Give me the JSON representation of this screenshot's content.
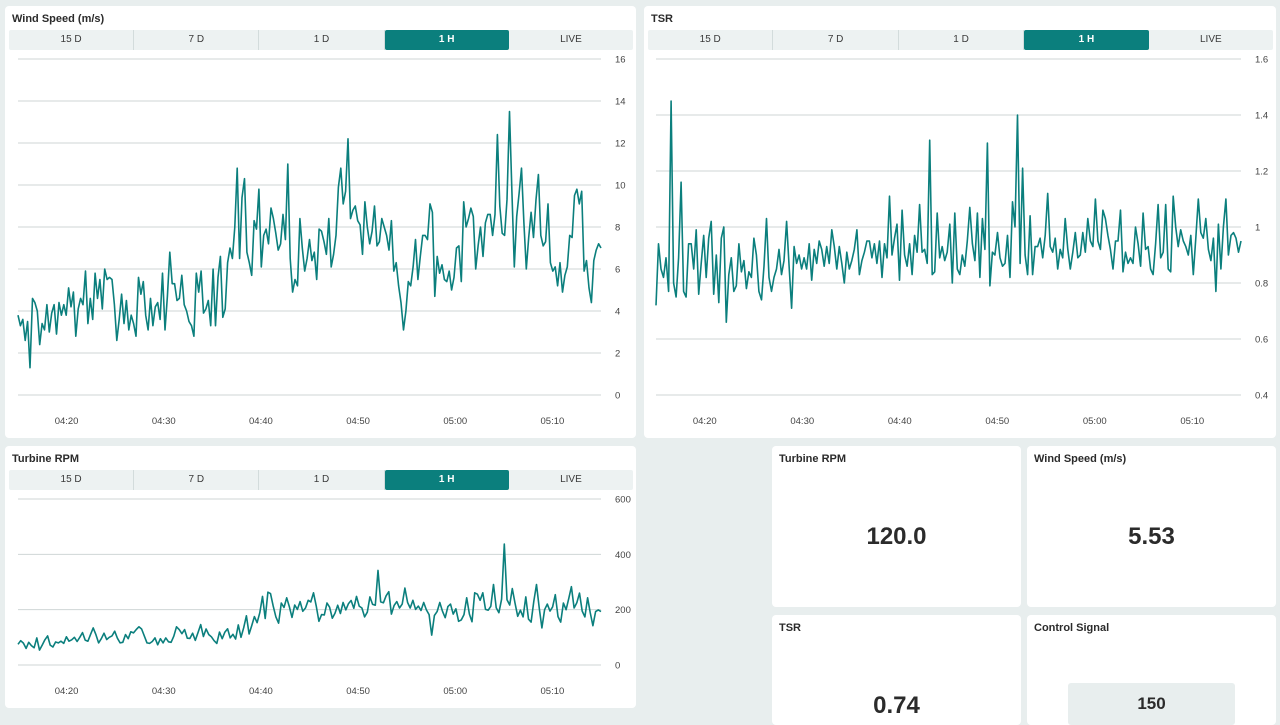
{
  "tabs": [
    "15 D",
    "7 D",
    "1 D",
    "1 H",
    "LIVE"
  ],
  "active_tab": "1 H",
  "accent_color": "#0b7f7d",
  "chart_wind": {
    "title": "Wind Speed (m/s)",
    "chart_data": {
      "type": "line",
      "x_ticks": [
        "04:20",
        "04:30",
        "04:40",
        "04:50",
        "05:00",
        "05:10"
      ],
      "x_range": [
        "04:15",
        "05:15"
      ],
      "y_ticks": [
        "0",
        "2",
        "4",
        "6",
        "8",
        "10",
        "12",
        "14",
        "16"
      ],
      "ylim": [
        0,
        16
      ],
      "grid": true,
      "values": [
        3.8,
        3.3,
        3.6,
        2.6,
        3.5,
        1.3,
        4.6,
        4.4,
        4.0,
        2.4,
        3.4,
        3.1,
        4.3,
        3.0,
        3.9,
        4.3,
        2.9,
        4.4,
        3.8,
        4.3,
        3.8,
        5.1,
        4.2,
        4.9,
        2.8,
        4.1,
        4.6,
        4.3,
        5.9,
        3.4,
        4.6,
        3.6,
        5.8,
        4.6,
        5.5,
        4.1,
        6.0,
        5.5,
        5.6,
        5.5,
        4.3,
        2.6,
        3.6,
        4.8,
        3.4,
        4.5,
        3.1,
        3.8,
        3.4,
        2.8,
        5.6,
        4.8,
        5.4,
        3.8,
        3.1,
        4.6,
        3.3,
        4.2,
        4.4,
        3.6,
        5.8,
        3.1,
        4.7,
        6.8,
        5.3,
        5.3,
        4.5,
        4.6,
        5.7,
        4.3,
        4.0,
        3.5,
        3.3,
        2.8,
        5.8,
        4.9,
        5.9,
        3.9,
        4.1,
        4.5,
        3.3,
        6.0,
        3.3,
        5.6,
        6.6,
        3.7,
        4.1,
        6.3,
        7.0,
        6.5,
        8.0,
        10.8,
        6.5,
        9.4,
        10.3,
        6.8,
        6.3,
        5.7,
        8.3,
        7.9,
        9.8,
        6.1,
        7.6,
        7.9,
        7.2,
        8.9,
        8.4,
        7.7,
        6.9,
        7.2,
        8.6,
        7.4,
        11.0,
        6.5,
        4.9,
        5.5,
        5.2,
        8.4,
        7.0,
        5.9,
        6.5,
        7.4,
        6.4,
        6.8,
        5.5,
        7.9,
        7.8,
        7.3,
        6.7,
        8.4,
        6.1,
        6.7,
        7.6,
        9.9,
        10.8,
        9.1,
        9.7,
        12.2,
        8.4,
        8.8,
        9.0,
        8.3,
        8.1,
        6.7,
        9.2,
        8.0,
        7.2,
        7.8,
        9.0,
        7.1,
        7.3,
        8.4,
        8.0,
        7.6,
        6.9,
        8.3,
        5.9,
        6.3,
        5.2,
        4.4,
        3.1,
        4.0,
        5.4,
        5.2,
        6.1,
        7.4,
        5.5,
        6.6,
        7.6,
        7.6,
        7.4,
        9.1,
        8.7,
        4.7,
        6.6,
        5.8,
        6.2,
        5.5,
        5.4,
        5.9,
        5.0,
        5.6,
        7.0,
        7.1,
        5.4,
        9.2,
        8.0,
        8.4,
        8.9,
        8.5,
        6.0,
        7.1,
        8.0,
        6.6,
        8.2,
        8.6,
        8.6,
        7.6,
        8.6,
        12.4,
        9.0,
        7.7,
        7.6,
        9.3,
        13.5,
        9.7,
        6.1,
        8.5,
        9.6,
        10.8,
        8.2,
        6.0,
        7.5,
        8.7,
        7.5,
        9.3,
        10.5,
        7.6,
        7.1,
        7.3,
        9.1,
        6.3,
        5.9,
        6.1,
        5.2,
        6.3,
        4.9,
        5.7,
        6.1,
        7.6,
        7.5,
        9.5,
        9.8,
        9.1,
        9.7,
        5.9,
        6.4,
        5.1,
        4.4,
        6.4,
        6.9,
        7.2,
        7.0
      ]
    }
  },
  "chart_tsr": {
    "title": "TSR",
    "chart_data": {
      "type": "line",
      "x_ticks": [
        "04:20",
        "04:30",
        "04:40",
        "04:50",
        "05:00",
        "05:10"
      ],
      "x_range": [
        "04:15",
        "05:15"
      ],
      "y_ticks": [
        "0.4",
        "0.6",
        "0.8",
        "1",
        "1.2",
        "1.4",
        "1.6"
      ],
      "ylim": [
        0.4,
        1.6
      ],
      "grid": true,
      "values": [
        0.72,
        0.94,
        0.85,
        0.82,
        0.89,
        0.77,
        1.45,
        0.8,
        0.75,
        0.89,
        1.16,
        0.77,
        0.75,
        0.94,
        0.94,
        0.85,
        0.99,
        0.76,
        0.87,
        0.97,
        0.82,
        0.96,
        1.02,
        0.76,
        0.9,
        0.73,
        0.96,
        1.0,
        0.66,
        0.83,
        0.89,
        0.77,
        0.79,
        0.94,
        0.84,
        0.88,
        0.78,
        0.84,
        0.82,
        0.96,
        0.9,
        0.77,
        0.74,
        0.86,
        1.03,
        0.82,
        0.77,
        0.82,
        0.85,
        0.92,
        0.83,
        0.88,
        1.02,
        0.86,
        0.71,
        0.93,
        0.87,
        0.9,
        0.85,
        0.89,
        0.85,
        0.94,
        0.81,
        0.92,
        0.87,
        0.95,
        0.92,
        0.86,
        0.93,
        0.87,
        0.99,
        0.93,
        0.85,
        0.93,
        0.87,
        0.8,
        0.91,
        0.85,
        0.88,
        0.92,
        0.99,
        0.83,
        0.88,
        0.91,
        0.95,
        0.95,
        0.89,
        0.94,
        0.87,
        0.95,
        0.82,
        0.94,
        0.89,
        1.11,
        0.9,
        0.96,
        1.01,
        0.81,
        1.06,
        0.9,
        0.86,
        0.94,
        0.83,
        0.97,
        0.91,
        1.08,
        0.91,
        0.92,
        0.87,
        1.31,
        0.83,
        0.84,
        1.05,
        0.89,
        0.93,
        0.88,
        0.91,
        1.01,
        0.8,
        1.05,
        0.85,
        0.83,
        0.9,
        0.86,
        0.95,
        1.07,
        0.94,
        0.88,
        1.05,
        0.82,
        1.03,
        0.92,
        1.3,
        0.79,
        0.91,
        0.9,
        0.98,
        0.89,
        0.86,
        0.87,
        0.97,
        0.82,
        1.09,
        1.0,
        1.4,
        0.87,
        1.21,
        0.9,
        0.83,
        1.04,
        0.83,
        0.93,
        0.93,
        0.96,
        0.89,
        0.97,
        1.12,
        0.93,
        0.91,
        0.96,
        0.85,
        0.92,
        0.89,
        1.03,
        0.92,
        0.85,
        0.91,
        0.98,
        0.89,
        0.9,
        0.98,
        0.91,
        1.03,
        0.95,
        0.93,
        1.1,
        0.95,
        0.92,
        1.06,
        1.03,
        0.97,
        0.92,
        0.85,
        0.95,
        0.95,
        1.06,
        0.84,
        0.91,
        0.87,
        0.89,
        0.87,
        1.0,
        0.94,
        0.86,
        1.05,
        0.92,
        0.93,
        0.85,
        0.83,
        0.94,
        1.08,
        0.89,
        0.91,
        1.08,
        0.85,
        0.84,
        1.11,
        1.0,
        0.93,
        0.99,
        0.95,
        0.93,
        0.9,
        0.97,
        0.83,
        0.96,
        1.1,
        0.98,
        0.96,
        1.03,
        0.92,
        0.88,
        0.96,
        0.77,
        1.01,
        0.85,
        1.0,
        1.1,
        0.9,
        0.97,
        0.98,
        0.96,
        0.91,
        0.95
      ]
    }
  },
  "chart_rpm": {
    "title": "Turbine RPM",
    "chart_data": {
      "type": "line",
      "x_ticks": [
        "04:20",
        "04:30",
        "04:40",
        "04:50",
        "05:00",
        "05:10"
      ],
      "x_range": [
        "04:15",
        "05:15"
      ],
      "y_ticks": [
        "0",
        "200",
        "400",
        "600"
      ],
      "ylim": [
        0,
        600
      ],
      "grid": true,
      "values": [
        75,
        88,
        79,
        60,
        82,
        70,
        62,
        98,
        54,
        72,
        91,
        105,
        72,
        65,
        83,
        80,
        86,
        78,
        102,
        86,
        91,
        100,
        85,
        100,
        117,
        90,
        86,
        110,
        134,
        110,
        80,
        95,
        115,
        92,
        100,
        105,
        122,
        97,
        80,
        82,
        110,
        95,
        120,
        116,
        128,
        138,
        130,
        105,
        80,
        78,
        85,
        98,
        73,
        95,
        80,
        98,
        84,
        82,
        104,
        138,
        128,
        113,
        128,
        97,
        96,
        115,
        89,
        117,
        146,
        103,
        130,
        110,
        102,
        88,
        78,
        119,
        95,
        119,
        131,
        98,
        111,
        94,
        145,
        100,
        135,
        178,
        112,
        142,
        175,
        153,
        189,
        248,
        168,
        263,
        258,
        213,
        174,
        151,
        224,
        208,
        243,
        210,
        172,
        217,
        201,
        229,
        194,
        206,
        234,
        228,
        261,
        214,
        158,
        182,
        181,
        224,
        209,
        169,
        187,
        216,
        186,
        226,
        199,
        222,
        233,
        205,
        248,
        213,
        206,
        174,
        191,
        246,
        219,
        216,
        342,
        228,
        225,
        250,
        265,
        184,
        215,
        229,
        206,
        220,
        278,
        226,
        206,
        234,
        201,
        213,
        197,
        226,
        199,
        182,
        108,
        179,
        193,
        226,
        194,
        171,
        211,
        220,
        184,
        203,
        158,
        163,
        182,
        243,
        184,
        156,
        261,
        256,
        234,
        261,
        201,
        198,
        212,
        291,
        207,
        189,
        238,
        437,
        236,
        217,
        276,
        224,
        176,
        198,
        174,
        246,
        166,
        155,
        230,
        291,
        207,
        134,
        200,
        220,
        195,
        210,
        254,
        175,
        155,
        224,
        200,
        241,
        283,
        206,
        225,
        260,
        195,
        174,
        243,
        188,
        142,
        193,
        199,
        193
      ]
    }
  },
  "stats": {
    "rpm": {
      "label": "Turbine RPM",
      "value": "120.0"
    },
    "wind": {
      "label": "Wind Speed (m/s)",
      "value": "5.53"
    },
    "tsr": {
      "label": "TSR",
      "value": "0.74"
    },
    "control": {
      "label": "Control Signal",
      "value": "150"
    }
  }
}
